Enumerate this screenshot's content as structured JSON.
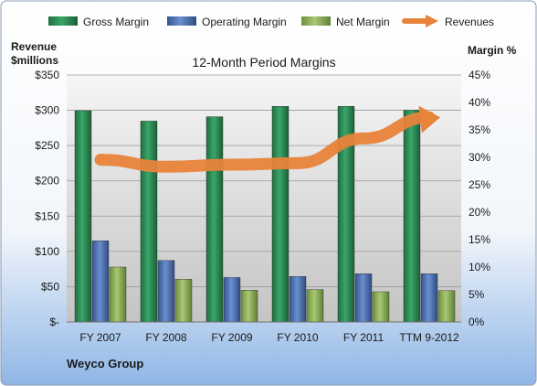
{
  "chart_data": {
    "type": "bar",
    "title": "12-Month Period Margins",
    "company": "Weyco Group",
    "y_left_label_line1": "Revenue",
    "y_left_label_line2": "$millions",
    "y_right_label": "Margin %",
    "categories": [
      "FY 2007",
      "FY 2008",
      "FY 2009",
      "FY 2010",
      "FY 2011",
      "TTM 9-2012"
    ],
    "y_left_ticks": [
      "$-",
      "$50",
      "$100",
      "$150",
      "$200",
      "$250",
      "$300",
      "$350"
    ],
    "y_right_ticks": [
      "0%",
      "5%",
      "10%",
      "15%",
      "20%",
      "25%",
      "30%",
      "35%",
      "40%",
      "45%"
    ],
    "ylim_left": [
      0,
      350
    ],
    "ylim_right": [
      0,
      45
    ],
    "grid": true,
    "legend_position": "top",
    "series": [
      {
        "name": "Gross Margin",
        "axis": "right",
        "color": "#2e8b57",
        "values": [
          38.5,
          36.6,
          37.4,
          39.3,
          39.3,
          38.6
        ]
      },
      {
        "name": "Operating Margin",
        "axis": "right",
        "color": "#4a6fb0",
        "values": [
          14.8,
          11.2,
          8.1,
          8.3,
          8.8,
          8.8
        ]
      },
      {
        "name": "Net Margin",
        "axis": "right",
        "color": "#8fb05a",
        "values": [
          10.0,
          7.8,
          5.8,
          5.9,
          5.5,
          5.7
        ]
      },
      {
        "name": "Revenues",
        "axis": "left",
        "type": "line",
        "color": "#e8833a",
        "values": [
          230,
          220,
          223,
          225,
          260,
          290
        ]
      }
    ]
  }
}
